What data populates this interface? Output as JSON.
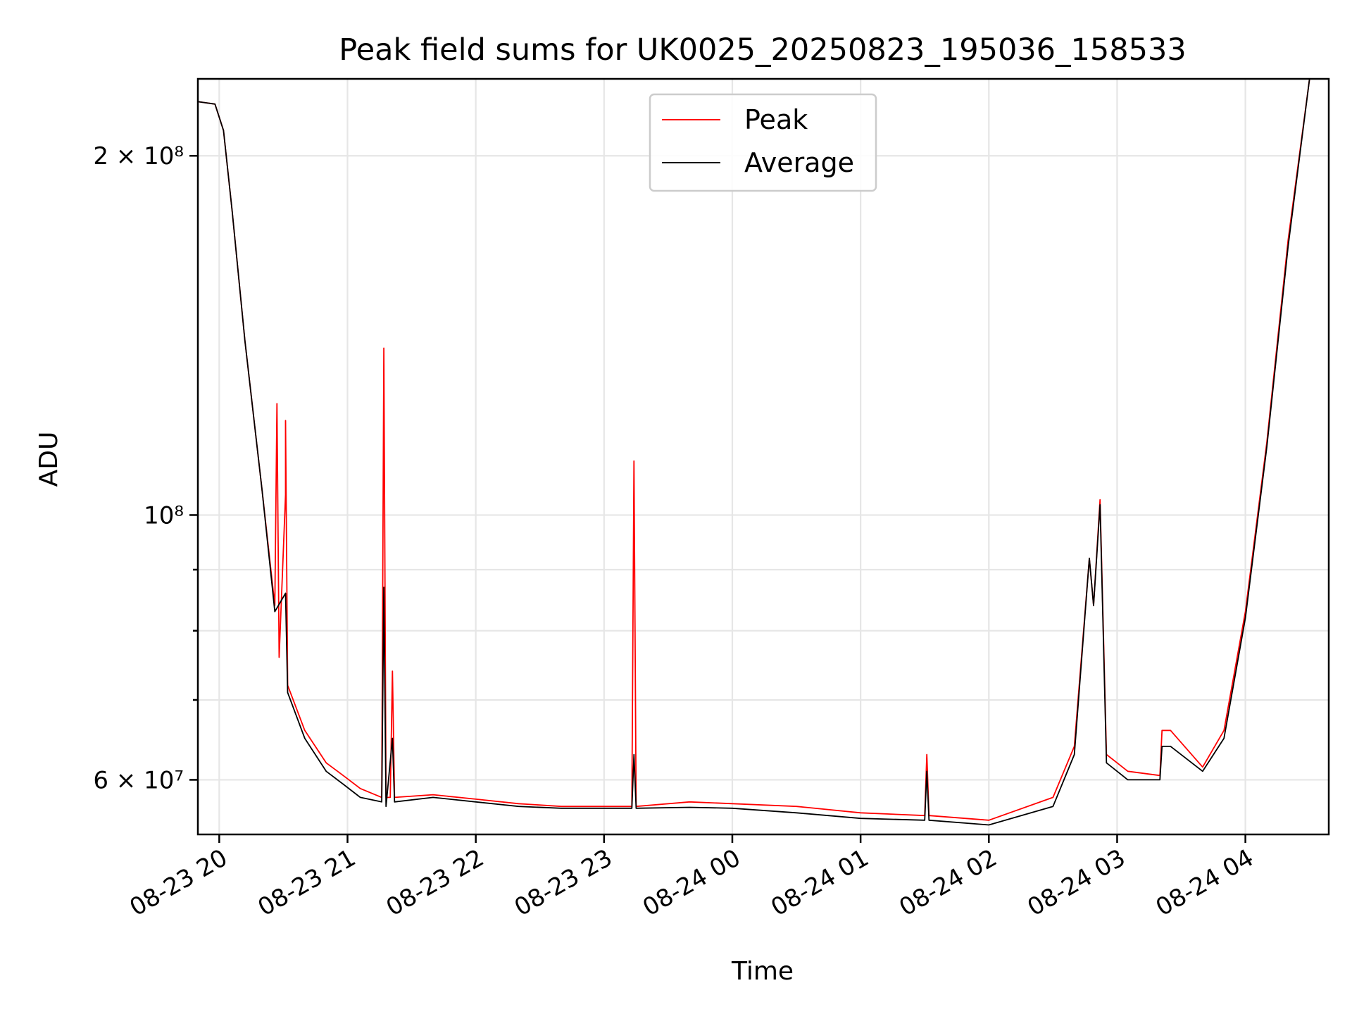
{
  "chart_data": {
    "type": "line",
    "title": "Peak field sums for UK0025_20250823_195036_158533",
    "xlabel": "Time",
    "ylabel": "ADU",
    "x_range": [
      "2025-08-23 19:50",
      "2025-08-24 04:39"
    ],
    "ylim": [
      54000000,
      232000000
    ],
    "yscale": "log",
    "grid": true,
    "legend_position": "upper center",
    "x_ticks": [
      "08-23 20",
      "08-23 21",
      "08-23 22",
      "08-23 23",
      "08-24 00",
      "08-24 01",
      "08-24 02",
      "08-24 03",
      "08-24 04"
    ],
    "y_major_ticks": [
      {
        "value": 60000000,
        "label": "6 × 10⁷"
      },
      {
        "value": 100000000,
        "label": "10⁸"
      },
      {
        "value": 200000000,
        "label": "2 × 10⁸"
      }
    ],
    "y_minor_ticks": [
      70000000,
      80000000,
      90000000
    ],
    "series": [
      {
        "name": "Peak",
        "color": "#ff0000",
        "points": [
          [
            "2025-08-23 19:50",
            222000000
          ],
          [
            "2025-08-23 19:58",
            221000000
          ],
          [
            "2025-08-23 20:02",
            210000000
          ],
          [
            "2025-08-23 20:06",
            180000000
          ],
          [
            "2025-08-23 20:12",
            140000000
          ],
          [
            "2025-08-23 20:20",
            105000000
          ],
          [
            "2025-08-23 20:26",
            84000000
          ],
          [
            "2025-08-23 20:27",
            124000000
          ],
          [
            "2025-08-23 20:28",
            76000000
          ],
          [
            "2025-08-23 20:31",
            104000000
          ],
          [
            "2025-08-23 20:31",
            120000000
          ],
          [
            "2025-08-23 20:32",
            72000000
          ],
          [
            "2025-08-23 20:40",
            66000000
          ],
          [
            "2025-08-23 20:50",
            62000000
          ],
          [
            "2025-08-23 20:58",
            60500000
          ],
          [
            "2025-08-23 21:06",
            59000000
          ],
          [
            "2025-08-23 21:16",
            58000000
          ],
          [
            "2025-08-23 21:17",
            138000000
          ],
          [
            "2025-08-23 21:18",
            58000000
          ],
          [
            "2025-08-23 21:20",
            58000000
          ],
          [
            "2025-08-23 21:21",
            74000000
          ],
          [
            "2025-08-23 21:22",
            58000000
          ],
          [
            "2025-08-23 21:40",
            58300000
          ],
          [
            "2025-08-23 22:00",
            57800000
          ],
          [
            "2025-08-23 22:20",
            57300000
          ],
          [
            "2025-08-23 22:40",
            57000000
          ],
          [
            "2025-08-23 23:00",
            57000000
          ],
          [
            "2025-08-23 23:13",
            57000000
          ],
          [
            "2025-08-23 23:14",
            111000000
          ],
          [
            "2025-08-23 23:15",
            57000000
          ],
          [
            "2025-08-23 23:40",
            57500000
          ],
          [
            "2025-08-24 00:00",
            57300000
          ],
          [
            "2025-08-24 00:30",
            57000000
          ],
          [
            "2025-08-24 01:00",
            56300000
          ],
          [
            "2025-08-24 01:30",
            56000000
          ],
          [
            "2025-08-24 01:31",
            63000000
          ],
          [
            "2025-08-24 01:32",
            56000000
          ],
          [
            "2025-08-24 02:00",
            55500000
          ],
          [
            "2025-08-24 02:30",
            58000000
          ],
          [
            "2025-08-24 02:40",
            64000000
          ],
          [
            "2025-08-24 02:47",
            92000000
          ],
          [
            "2025-08-24 02:49",
            84000000
          ],
          [
            "2025-08-24 02:52",
            103000000
          ],
          [
            "2025-08-24 02:55",
            63000000
          ],
          [
            "2025-08-24 03:00",
            62000000
          ],
          [
            "2025-08-24 03:05",
            61000000
          ],
          [
            "2025-08-24 03:20",
            60500000
          ],
          [
            "2025-08-24 03:21",
            66000000
          ],
          [
            "2025-08-24 03:25",
            66000000
          ],
          [
            "2025-08-24 03:40",
            61500000
          ],
          [
            "2025-08-24 03:50",
            66000000
          ],
          [
            "2025-08-24 04:00",
            83000000
          ],
          [
            "2025-08-24 04:10",
            115000000
          ],
          [
            "2025-08-24 04:20",
            170000000
          ],
          [
            "2025-08-24 04:30",
            232000000
          ],
          [
            "2025-08-24 04:39",
            232000000
          ]
        ]
      },
      {
        "name": "Average",
        "color": "#000000",
        "points": [
          [
            "2025-08-23 19:50",
            222000000
          ],
          [
            "2025-08-23 19:58",
            221000000
          ],
          [
            "2025-08-23 20:02",
            210000000
          ],
          [
            "2025-08-23 20:06",
            180000000
          ],
          [
            "2025-08-23 20:12",
            140000000
          ],
          [
            "2025-08-23 20:20",
            105000000
          ],
          [
            "2025-08-23 20:26",
            83000000
          ],
          [
            "2025-08-23 20:31",
            86000000
          ],
          [
            "2025-08-23 20:32",
            71000000
          ],
          [
            "2025-08-23 20:40",
            65000000
          ],
          [
            "2025-08-23 20:50",
            61000000
          ],
          [
            "2025-08-23 20:58",
            59500000
          ],
          [
            "2025-08-23 21:06",
            58000000
          ],
          [
            "2025-08-23 21:16",
            57500000
          ],
          [
            "2025-08-23 21:17",
            87000000
          ],
          [
            "2025-08-23 21:18",
            57000000
          ],
          [
            "2025-08-23 21:21",
            65000000
          ],
          [
            "2025-08-23 21:22",
            57500000
          ],
          [
            "2025-08-23 21:40",
            58000000
          ],
          [
            "2025-08-23 22:00",
            57500000
          ],
          [
            "2025-08-23 22:20",
            57000000
          ],
          [
            "2025-08-23 22:40",
            56800000
          ],
          [
            "2025-08-23 23:00",
            56800000
          ],
          [
            "2025-08-23 23:13",
            56800000
          ],
          [
            "2025-08-23 23:14",
            63000000
          ],
          [
            "2025-08-23 23:15",
            56800000
          ],
          [
            "2025-08-23 23:40",
            56900000
          ],
          [
            "2025-08-24 00:00",
            56800000
          ],
          [
            "2025-08-24 00:30",
            56300000
          ],
          [
            "2025-08-24 01:00",
            55700000
          ],
          [
            "2025-08-24 01:30",
            55500000
          ],
          [
            "2025-08-24 01:31",
            61000000
          ],
          [
            "2025-08-24 01:32",
            55500000
          ],
          [
            "2025-08-24 02:00",
            55000000
          ],
          [
            "2025-08-24 02:30",
            57000000
          ],
          [
            "2025-08-24 02:40",
            63000000
          ],
          [
            "2025-08-24 02:47",
            92000000
          ],
          [
            "2025-08-24 02:49",
            84000000
          ],
          [
            "2025-08-24 02:52",
            102000000
          ],
          [
            "2025-08-24 02:55",
            62000000
          ],
          [
            "2025-08-24 03:00",
            61000000
          ],
          [
            "2025-08-24 03:05",
            60000000
          ],
          [
            "2025-08-24 03:20",
            60000000
          ],
          [
            "2025-08-24 03:21",
            64000000
          ],
          [
            "2025-08-24 03:25",
            64000000
          ],
          [
            "2025-08-24 03:40",
            61000000
          ],
          [
            "2025-08-24 03:50",
            65000000
          ],
          [
            "2025-08-24 04:00",
            82000000
          ],
          [
            "2025-08-24 04:10",
            114000000
          ],
          [
            "2025-08-24 04:20",
            168000000
          ],
          [
            "2025-08-24 04:30",
            232000000
          ],
          [
            "2025-08-24 04:39",
            232000000
          ]
        ]
      }
    ]
  }
}
